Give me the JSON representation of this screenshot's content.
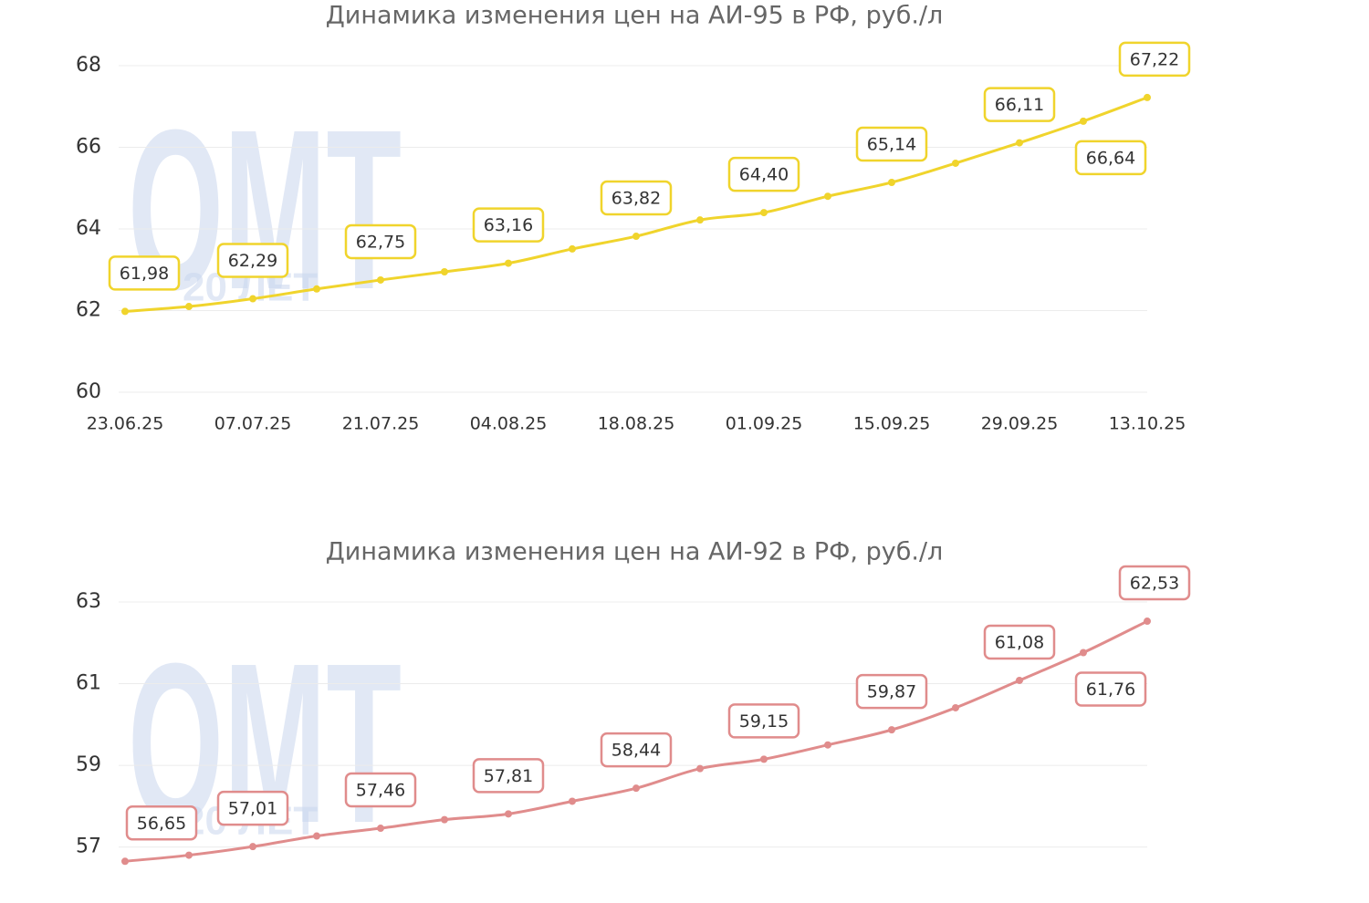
{
  "watermark": {
    "logo": "OMT",
    "caption": "20 ЛЕТ"
  },
  "chart_data": [
    {
      "type": "line",
      "title": "Динамика изменения цен на АИ-95 в РФ, руб./л",
      "categories": [
        "23.06.25",
        null,
        "07.07.25",
        null,
        "21.07.25",
        null,
        "04.08.25",
        null,
        "18.08.25",
        null,
        "01.09.25",
        null,
        "15.09.25",
        null,
        "29.09.25",
        null,
        "13.10.25"
      ],
      "values": [
        61.98,
        62.1,
        62.29,
        62.53,
        62.75,
        62.95,
        63.16,
        63.51,
        63.82,
        64.22,
        64.4,
        64.8,
        65.14,
        65.61,
        66.11,
        66.64,
        67.22
      ],
      "value_labels": [
        "61,98",
        null,
        "62,29",
        null,
        "62,75",
        null,
        "63,16",
        null,
        "63,82",
        null,
        "64,40",
        null,
        "65,14",
        null,
        "66,11",
        "66,64",
        "67,22"
      ],
      "color": "#f0d42c",
      "ylim": [
        60,
        68
      ],
      "yticks": [
        60,
        62,
        64,
        66,
        68
      ],
      "grid": true
    },
    {
      "type": "line",
      "title": "Динамика изменения цен на АИ-92 в РФ, руб./л",
      "values": [
        56.65,
        56.8,
        57.01,
        57.27,
        57.46,
        57.67,
        57.81,
        58.12,
        58.44,
        58.92,
        59.15,
        59.5,
        59.87,
        60.41,
        61.08,
        61.76,
        62.53
      ],
      "value_labels": [
        "56,65",
        null,
        "57,01",
        null,
        "57,46",
        null,
        "57,81",
        null,
        "58,44",
        null,
        "59,15",
        null,
        "59,87",
        null,
        "61,08",
        "61,76",
        "62,53"
      ],
      "color": "#e08c8c",
      "ylim": [
        56.5,
        63
      ],
      "yticks": [
        57,
        59,
        61,
        63
      ],
      "grid": true
    }
  ]
}
